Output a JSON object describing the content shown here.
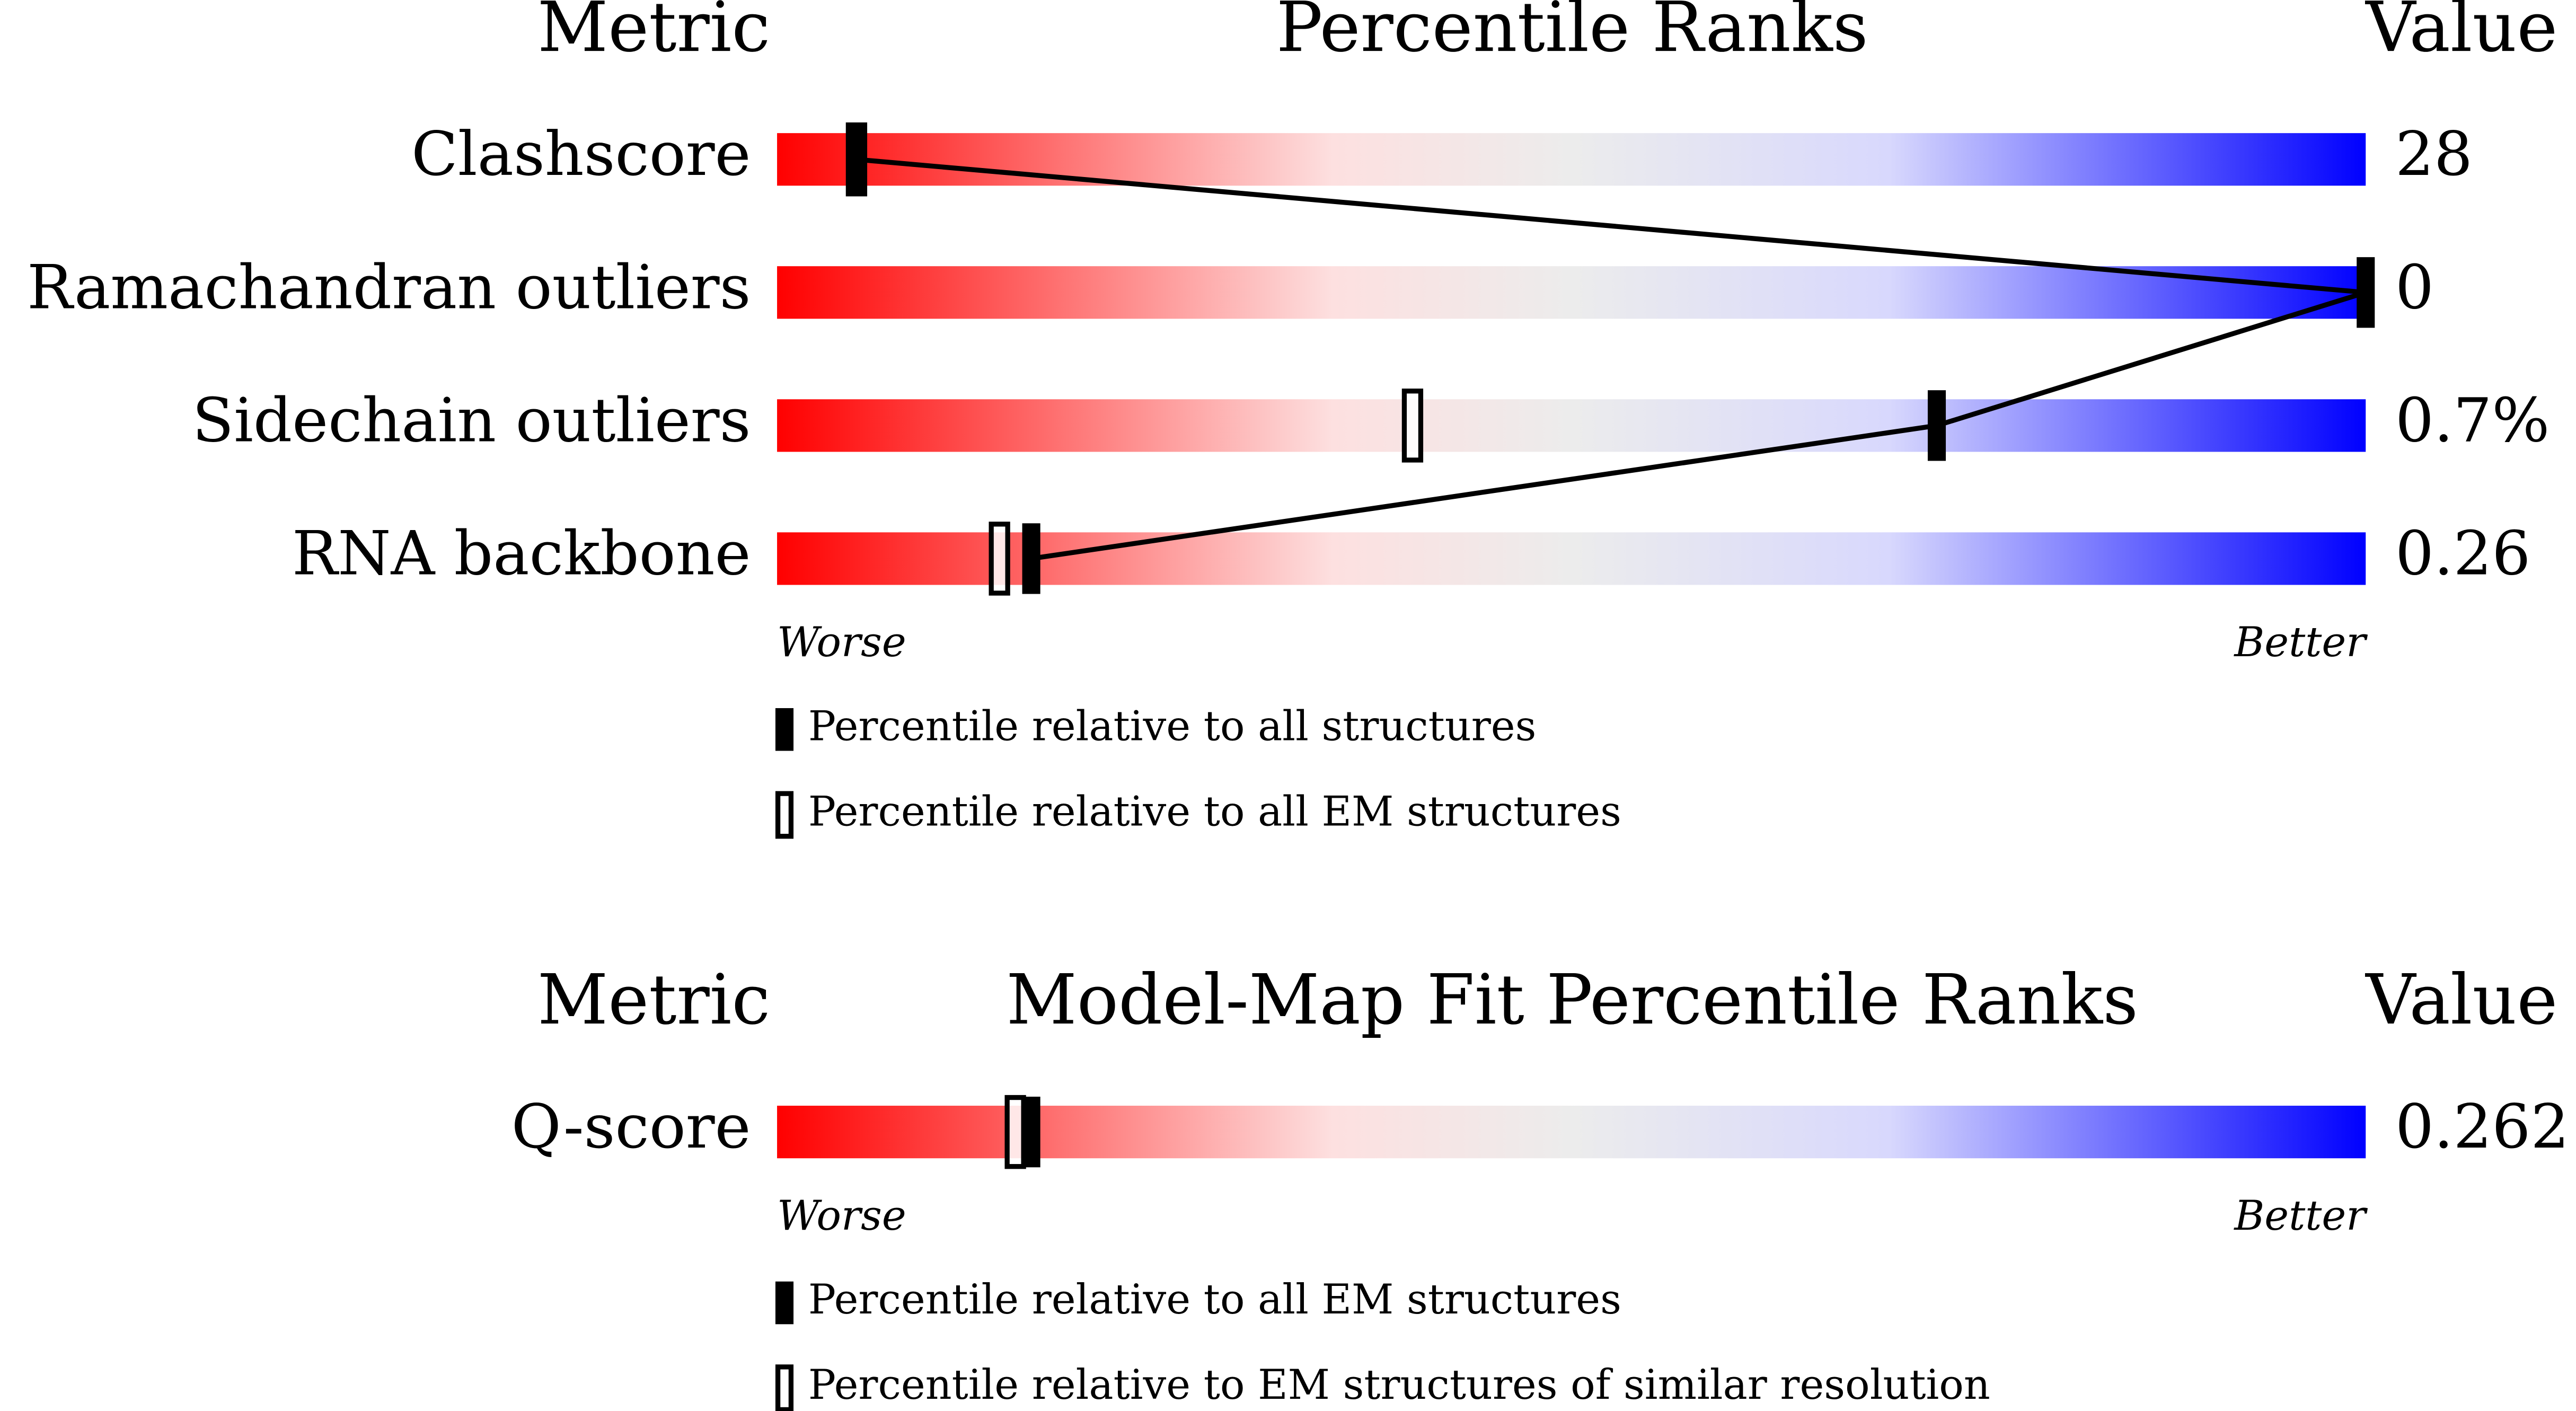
{
  "chart_data": [
    {
      "type": "percentile_slider",
      "metric_header": "Metric",
      "title": "Percentile Ranks",
      "value_header": "Value",
      "categories": [
        "Clashscore",
        "Ramachandran outliers",
        "Sidechain outliers",
        "RNA backbone"
      ],
      "value_texts": [
        "28",
        "0",
        "0.7%",
        "0.26"
      ],
      "xlim": [
        0,
        100
      ],
      "low_label": "Worse",
      "high_label": "Better",
      "series": [
        {
          "name": "Percentile relative to all structures",
          "style": "filled",
          "connect": true,
          "values": [
            5,
            100,
            73,
            16
          ]
        },
        {
          "name": "Percentile relative to all EM structures",
          "style": "open",
          "connect": false,
          "values": [
            5,
            null,
            40,
            14
          ]
        }
      ]
    },
    {
      "type": "percentile_slider",
      "metric_header": "Metric",
      "title": "Model-Map Fit Percentile Ranks",
      "value_header": "Value",
      "categories": [
        "Q-score"
      ],
      "value_texts": [
        "0.262"
      ],
      "xlim": [
        0,
        100
      ],
      "low_label": "Worse",
      "high_label": "Better",
      "series": [
        {
          "name": "Percentile relative to all EM structures",
          "style": "filled",
          "connect": false,
          "values": [
            16
          ]
        },
        {
          "name": "Percentile relative to EM structures of similar resolution",
          "style": "open",
          "connect": false,
          "values": [
            15
          ]
        }
      ]
    }
  ]
}
